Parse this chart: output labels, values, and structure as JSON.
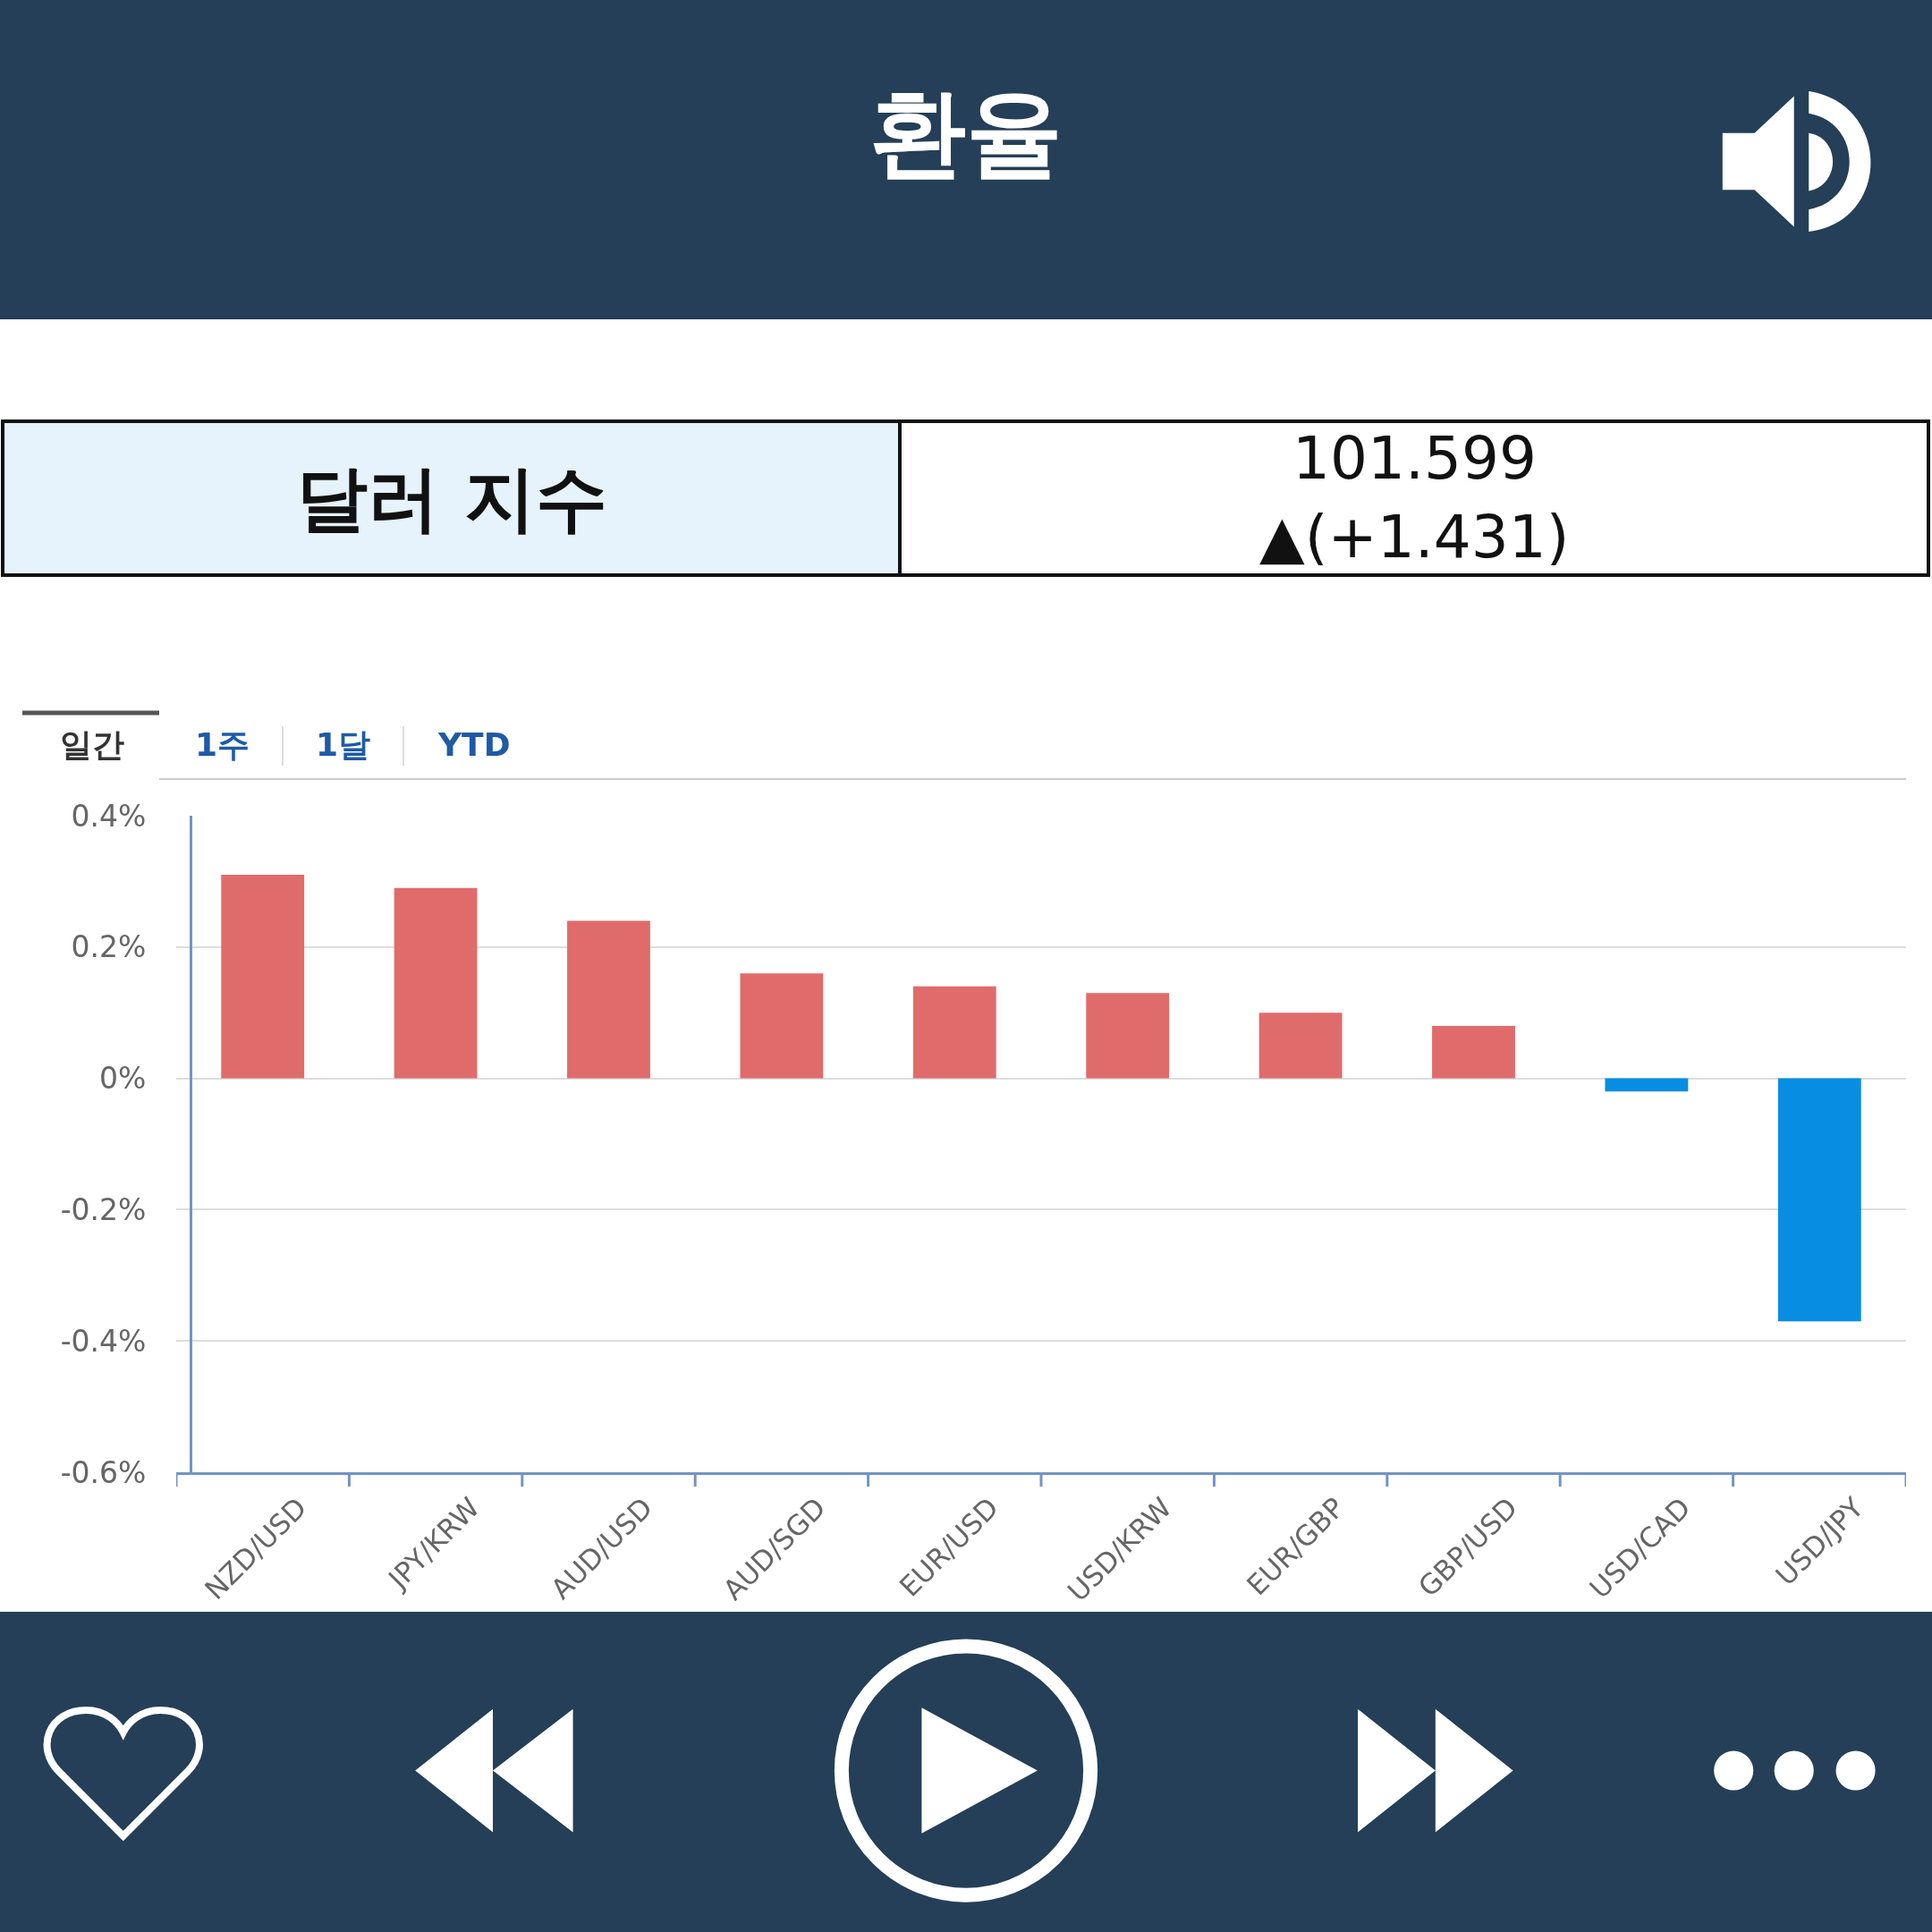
{
  "chart_data": {
    "type": "bar",
    "title": "환율",
    "categories": [
      "NZD/USD",
      "JPY/KRW",
      "AUD/USD",
      "AUD/SGD",
      "EUR/USD",
      "USD/KRW",
      "EUR/GBP",
      "GBP/USD",
      "USD/CAD",
      "USD/JPY"
    ],
    "values": [
      0.31,
      0.29,
      0.24,
      0.16,
      0.14,
      0.13,
      0.1,
      0.08,
      -0.02,
      -0.37
    ],
    "colors": [
      "#e06b6b",
      "#e06b6b",
      "#e06b6b",
      "#e06b6b",
      "#e06b6b",
      "#e06b6b",
      "#e06b6b",
      "#e06b6b",
      "#078de2",
      "#078de2"
    ],
    "ylim": [
      -0.6,
      0.4
    ],
    "yticks": [
      {
        "value": 0.4,
        "label": "0.4%"
      },
      {
        "value": 0.2,
        "label": "0.2%"
      },
      {
        "value": 0,
        "label": "0%"
      },
      {
        "value": -0.2,
        "label": "-0.2%"
      },
      {
        "value": -0.4,
        "label": "-0.4%"
      },
      {
        "value": -0.6,
        "label": "-0.6%"
      }
    ],
    "grid": "y",
    "annotations": [
      "달러 지수",
      "101.599",
      "▲(+1.431)",
      "일간",
      "1주",
      "1달",
      "YTD"
    ]
  }
}
